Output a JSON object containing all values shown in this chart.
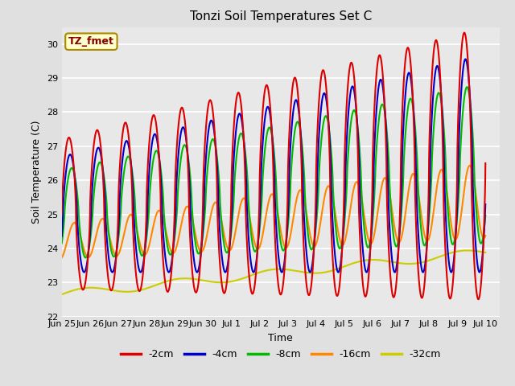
{
  "title": "Tonzi Soil Temperatures Set C",
  "xlabel": "Time",
  "ylabel": "Soil Temperature (C)",
  "ylim": [
    22.0,
    30.5
  ],
  "xlim_days": 15.5,
  "annotation_text": "TZ_fmet",
  "annotation_color": "#880000",
  "annotation_bg": "#ffffcc",
  "annotation_border": "#aa8800",
  "series_labels": [
    "-2cm",
    "-4cm",
    "-8cm",
    "-16cm",
    "-32cm"
  ],
  "series_colors": [
    "#dd0000",
    "#0000cc",
    "#00bb00",
    "#ff8800",
    "#cccc00"
  ],
  "series_linewidths": [
    1.5,
    1.5,
    1.5,
    1.5,
    1.5
  ],
  "background_color": "#e0e0e0",
  "axes_bg_color": "#e8e8e8",
  "grid_color": "#ffffff",
  "tick_labels": [
    "Jun 25",
    "Jun 26",
    "Jun 27",
    "Jun 28",
    "Jun 29",
    "Jun 30",
    "Jul 1",
    "Jul 2",
    "Jul 3",
    "Jul 4",
    "Jul 5",
    "Jul 6",
    "Jul 7",
    "Jul 8",
    "Jul 9",
    "Jul 10"
  ],
  "tick_positions": [
    0,
    1,
    2,
    3,
    4,
    5,
    6,
    7,
    8,
    9,
    10,
    11,
    12,
    13,
    14,
    15
  ]
}
